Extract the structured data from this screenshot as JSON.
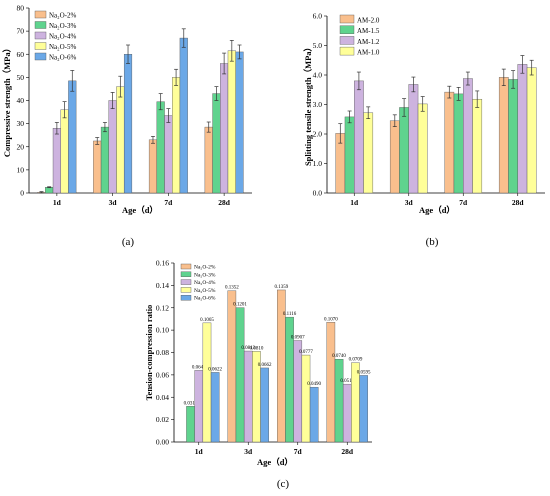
{
  "colors": {
    "orange": "#F9BF8D",
    "green": "#5FD38E",
    "purple": "#CDB3DF",
    "yellow": "#FFFF99",
    "blue": "#6BA8E7"
  },
  "chart_data": [
    {
      "id": "a",
      "type": "bar",
      "caption": "(a)",
      "xlabel": "Age（d）",
      "ylabel": "Compressive strength（MPa）",
      "categories": [
        "1d",
        "3d",
        "7d",
        "28d"
      ],
      "ylim": [
        0,
        80
      ],
      "yticks": [
        "0",
        "10",
        "20",
        "30",
        "40",
        "50",
        "60",
        "70",
        "80"
      ],
      "legend_position": "top-left",
      "series": [
        {
          "name": "Na₂O-2%",
          "color": "#F9BF8D",
          "values": [
            0.3,
            22.5,
            23,
            28.5
          ],
          "errors": [
            0.3,
            1.5,
            1.5,
            2.2
          ]
        },
        {
          "name": "Na₂O-3%",
          "color": "#5FD38E",
          "values": [
            2.5,
            28.5,
            39.5,
            43
          ],
          "errors": [
            0.2,
            2,
            3.5,
            3
          ]
        },
        {
          "name": "Na₂O-4%",
          "color": "#CDB3DF",
          "values": [
            28,
            40,
            33.5,
            56
          ],
          "errors": [
            2.5,
            3.5,
            3,
            4.5
          ]
        },
        {
          "name": "Na₂O-5%",
          "color": "#FFFF99",
          "values": [
            36,
            46,
            50,
            61.5
          ],
          "errors": [
            3.5,
            4.5,
            3.5,
            4.5
          ]
        },
        {
          "name": "Na₂O-6%",
          "color": "#6BA8E7",
          "values": [
            48.5,
            60,
            67,
            61
          ],
          "errors": [
            4.5,
            4,
            4,
            3
          ]
        }
      ]
    },
    {
      "id": "b",
      "type": "bar",
      "caption": "(b)",
      "xlabel": "Age（d）",
      "ylabel": "Splitting tensile strength（MPa）",
      "categories": [
        "1d",
        "3d",
        "7d",
        "28d"
      ],
      "ylim": [
        0,
        6
      ],
      "yticks": [
        "0.0",
        "1.0",
        "2.0",
        "3.0",
        "4.0",
        "5.0",
        "6.0"
      ],
      "legend_position": "top-left",
      "series": [
        {
          "name": "AM-2.0",
          "color": "#F9BF8D",
          "values": [
            2.02,
            2.45,
            3.42,
            3.92
          ],
          "errors": [
            0.33,
            0.2,
            0.2,
            0.28
          ]
        },
        {
          "name": "AM-1.5",
          "color": "#5FD38E",
          "values": [
            2.58,
            2.9,
            3.36,
            3.85
          ],
          "errors": [
            0.2,
            0.3,
            0.22,
            0.3
          ]
        },
        {
          "name": "AM-1.2",
          "color": "#CDB3DF",
          "values": [
            3.8,
            3.68,
            3.88,
            4.36
          ],
          "errors": [
            0.3,
            0.25,
            0.22,
            0.3
          ]
        },
        {
          "name": "AM-1.0",
          "color": "#FFFF99",
          "values": [
            2.72,
            3.02,
            3.18,
            4.25
          ],
          "errors": [
            0.2,
            0.25,
            0.28,
            0.25
          ]
        }
      ]
    },
    {
      "id": "c",
      "type": "bar",
      "caption": "(c)",
      "xlabel": "Age（d）",
      "ylabel": "Tension-compression ratio",
      "categories": [
        "1d",
        "3d",
        "7d",
        "28d"
      ],
      "ylim": [
        0,
        0.16
      ],
      "yticks": [
        "0.00",
        "0.02",
        "0.04",
        "0.06",
        "0.08",
        "0.10",
        "0.12",
        "0.14",
        "0.16"
      ],
      "legend_position": "top-left",
      "series": [
        {
          "name": "Na₂O-2%",
          "color": "#F9BF8D",
          "values": [
            null,
            0.1352,
            0.1359,
            0.107
          ],
          "labels": [
            "",
            "0.1352",
            "0.1359",
            "0.1070"
          ]
        },
        {
          "name": "Na₂O-3%",
          "color": "#5FD38E",
          "values": [
            0.0319,
            0.1201,
            0.1116,
            0.074
          ],
          "labels": [
            "0.0319",
            "0.1201",
            "0.1116",
            "0.0740"
          ]
        },
        {
          "name": "Na₂O-4%",
          "color": "#CDB3DF",
          "values": [
            0.064,
            0.0813,
            0.0907,
            0.0517
          ],
          "labels": [
            "0.0640",
            "0.0813",
            "0.0907",
            "0.0517"
          ]
        },
        {
          "name": "Na₂O-5%",
          "color": "#FFFF99",
          "values": [
            0.1065,
            0.081,
            0.0777,
            0.0709
          ],
          "labels": [
            "0.1065",
            "0.0810",
            "0.0777",
            "0.0709"
          ]
        },
        {
          "name": "Na₂O-6%",
          "color": "#6BA8E7",
          "values": [
            0.0622,
            0.0662,
            0.049,
            0.0595
          ],
          "labels": [
            "0.0622",
            "0.0662",
            "0.0490",
            "0.0595"
          ]
        }
      ]
    }
  ]
}
